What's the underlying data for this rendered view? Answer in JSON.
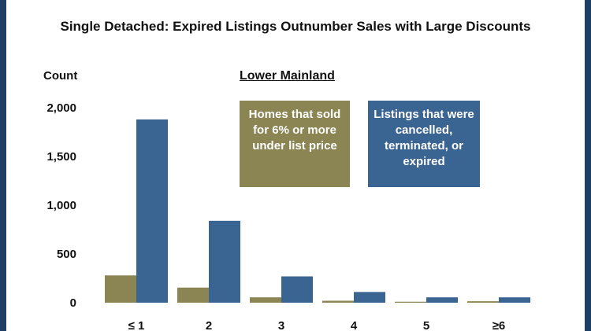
{
  "title": "Single Detached:  Expired Listings Outnumber Sales with Large Discounts",
  "subtitle": "Lower Mainland",
  "y_unit": "Count",
  "legend": {
    "sold": "Homes that sold for 6% or more under list price",
    "expired": "Listings that were cancelled, terminated, or expired"
  },
  "colors": {
    "sold": "#8a8553",
    "expired": "#3a6592",
    "frame": "#1f3e66"
  },
  "chart_data": {
    "type": "bar",
    "categories": [
      "≤ 1",
      "2",
      "3",
      "4",
      "5",
      "≥6"
    ],
    "series": [
      {
        "name": "Homes that sold for 6% or more under list price",
        "values": [
          280,
          155,
          55,
          20,
          10,
          15
        ]
      },
      {
        "name": "Listings that were cancelled, terminated, or expired",
        "values": [
          1880,
          840,
          270,
          110,
          55,
          55
        ]
      }
    ],
    "ylim": [
      0,
      2000
    ],
    "yticks": [
      0,
      500,
      1000,
      1500,
      2000
    ],
    "ytick_labels": [
      "0",
      "500",
      "1,000",
      "1,500",
      "2,000"
    ],
    "grid": false
  }
}
